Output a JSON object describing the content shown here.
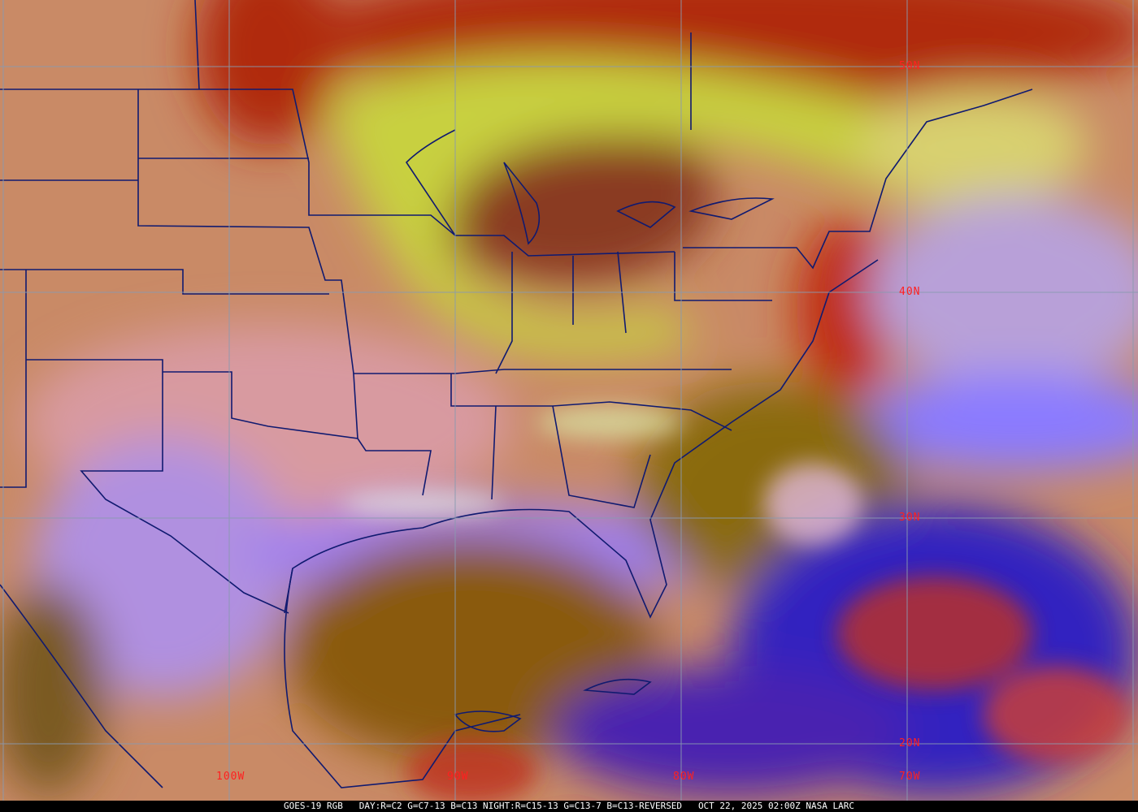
{
  "footer": {
    "satellite": "GOES-19 RGB",
    "product": "DAY:R=C2 G=C7-13 B=C13 NIGHT:R=C15-13 G=C13-7 B=C13-REVERSED",
    "datetime": "OCT 22, 2025 02:00Z",
    "source": "NASA LARC"
  },
  "grid": {
    "latitudes": [
      {
        "label": "50N",
        "value": 50
      },
      {
        "label": "40N",
        "value": 40
      },
      {
        "label": "30N",
        "value": 30
      },
      {
        "label": "20N",
        "value": 20
      }
    ],
    "longitudes": [
      {
        "label": "100W",
        "value": -100
      },
      {
        "label": "90W",
        "value": -90
      },
      {
        "label": "80W",
        "value": -80
      },
      {
        "label": "70W",
        "value": -70
      }
    ],
    "grid_color": "#8a9ab0",
    "label_color": "#ff2020",
    "border_color": "#101a70"
  }
}
